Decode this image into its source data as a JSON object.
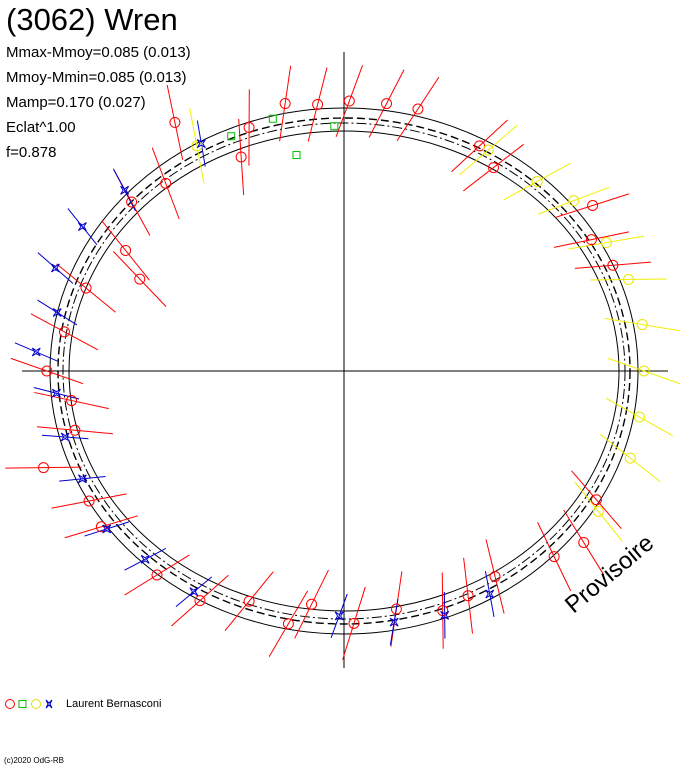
{
  "header": {
    "title": "(3062) Wren",
    "stats": [
      "Mmax-Mmoy=0.085 (0.013)",
      "Mmoy-Mmin=0.085 (0.013)",
      "Mamp=0.170 (0.027)",
      "Eclat^1.00",
      "f=0.878"
    ]
  },
  "watermark": "Provisoire",
  "legend": {
    "observer": "Laurent Bernasconi"
  },
  "copyright": "(c)2020 OdG-RB",
  "colors": {
    "observer_red": "#ff0000",
    "observer_green": "#00c000",
    "observer_yellow": "#ffff00",
    "observer_blue": "#0000cc",
    "axes": "#000000"
  },
  "chart_data": {
    "type": "polar-lightcurve",
    "description_of_encoding": "",
    "rotational_phase_fraction": 0.878,
    "amplitude_mag": 0.17,
    "mmax_minus_mmoy": 0.085,
    "mmoy_minus_mmin": 0.085,
    "observer_sets": [
      {
        "symbol": "circle",
        "color": "red",
        "points": [
          {
            "angle_deg": 101,
            "radius": 1.09
          },
          {
            "angle_deg": 95,
            "radius": 1.07
          },
          {
            "angle_deg": 89,
            "radius": 1.08
          },
          {
            "angle_deg": 82,
            "radius": 1.08
          },
          {
            "angle_deg": 76,
            "radius": 1.08
          },
          {
            "angle_deg": 62,
            "radius": 1.02
          },
          {
            "angle_deg": 57,
            "radius": 0.97
          },
          {
            "angle_deg": 37,
            "radius": 1.1
          },
          {
            "angle_deg": 31,
            "radius": 1.02
          },
          {
            "angle_deg": 24,
            "radius": 1.04
          },
          {
            "angle_deg": 109,
            "radius": 1.03
          },
          {
            "angle_deg": 113,
            "radius": 0.93
          },
          {
            "angle_deg": 121,
            "radius": 1.16
          },
          {
            "angle_deg": 130,
            "radius": 0.98
          },
          {
            "angle_deg": 138,
            "radius": 1.01
          },
          {
            "angle_deg": 148,
            "radius": 0.91
          },
          {
            "angle_deg": 153,
            "radius": 0.81
          },
          {
            "angle_deg": 160,
            "radius": 0.97
          },
          {
            "angle_deg": 171,
            "radius": 1.0
          },
          {
            "angle_deg": 180,
            "radius": 1.05
          },
          {
            "angle_deg": 187,
            "radius": 0.97
          },
          {
            "angle_deg": 194,
            "radius": 0.98
          },
          {
            "angle_deg": 200,
            "radius": 1.13
          },
          {
            "angle_deg": 210,
            "radius": 1.04
          },
          {
            "angle_deg": 216,
            "radius": 1.06
          },
          {
            "angle_deg": 231,
            "radius": 1.05
          },
          {
            "angle_deg": 241,
            "radius": 1.05
          },
          {
            "angle_deg": 250,
            "radius": 0.98
          },
          {
            "angle_deg": 259,
            "radius": 1.03
          },
          {
            "angle_deg": 263,
            "radius": 0.94
          },
          {
            "angle_deg": 272,
            "radius": 1.01
          },
          {
            "angle_deg": 281,
            "radius": 0.97
          },
          {
            "angle_deg": 290,
            "radius": 1.02
          },
          {
            "angle_deg": 296,
            "radius": 1.0
          },
          {
            "angle_deg": 303,
            "radius": 0.98
          },
          {
            "angle_deg": 315,
            "radius": 1.05
          },
          {
            "angle_deg": 321,
            "radius": 1.09
          },
          {
            "angle_deg": 330,
            "radius": 1.03
          }
        ]
      },
      {
        "symbol": "square",
        "color": "green",
        "points": [
          {
            "angle_deg": 113,
            "radius": 1.02
          },
          {
            "angle_deg": 104,
            "radius": 1.04
          },
          {
            "angle_deg": 92,
            "radius": 0.98
          },
          {
            "angle_deg": 101,
            "radius": 0.88
          }
        ]
      },
      {
        "symbol": "circle",
        "color": "yellow",
        "points": [
          {
            "angle_deg": 60,
            "radius": 1.02
          },
          {
            "angle_deg": 48,
            "radius": 1.02
          },
          {
            "angle_deg": 40,
            "radius": 1.06
          },
          {
            "angle_deg": 29,
            "radius": 1.06
          },
          {
            "angle_deg": 20,
            "radius": 1.07
          },
          {
            "angle_deg": 10,
            "radius": 1.07
          },
          {
            "angle_deg": 0,
            "radius": 1.06
          },
          {
            "angle_deg": 350,
            "radius": 1.06
          },
          {
            "angle_deg": 341,
            "radius": 1.07
          },
          {
            "angle_deg": 328,
            "radius": 1.06
          },
          {
            "angle_deg": 120,
            "radius": 1.04
          }
        ]
      },
      {
        "symbol": "star",
        "color": "blue",
        "points": [
          {
            "angle_deg": 119,
            "radius": 1.04
          },
          {
            "angle_deg": 137,
            "radius": 1.06
          },
          {
            "angle_deg": 148,
            "radius": 1.09
          },
          {
            "angle_deg": 158,
            "radius": 1.1
          },
          {
            "angle_deg": 167,
            "radius": 1.04
          },
          {
            "angle_deg": 176,
            "radius": 1.09
          },
          {
            "angle_deg": 185,
            "radius": 1.02
          },
          {
            "angle_deg": 195,
            "radius": 1.02
          },
          {
            "angle_deg": 205,
            "radius": 1.02
          },
          {
            "angle_deg": 217,
            "radius": 1.05
          },
          {
            "angle_deg": 227,
            "radius": 1.03
          },
          {
            "angle_deg": 239,
            "radius": 1.03
          },
          {
            "angle_deg": 269,
            "radius": 0.98
          },
          {
            "angle_deg": 280,
            "radius": 1.02
          },
          {
            "angle_deg": 290,
            "radius": 1.04
          },
          {
            "angle_deg": 300,
            "radius": 1.03
          }
        ]
      }
    ],
    "model_curves": [
      "outer-solid",
      "dashed",
      "dash-dot",
      "inner-solid"
    ]
  }
}
